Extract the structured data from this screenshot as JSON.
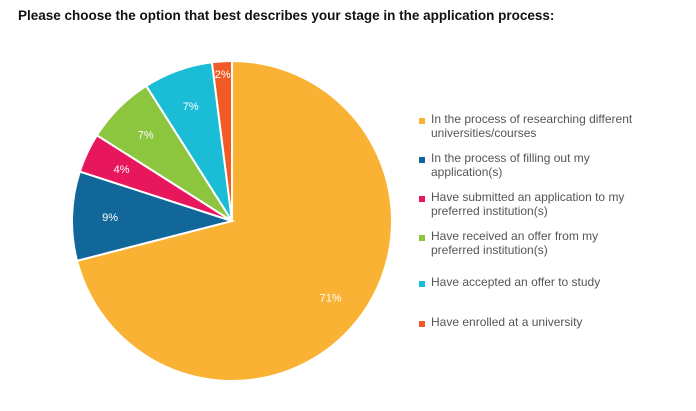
{
  "title": "Please choose the option that best describes your stage in the application process:",
  "chart_data": {
    "type": "pie",
    "title": "Please choose the option that best describes your stage in the application process:",
    "slices": [
      {
        "label": "In the process of researching different universities/courses",
        "value": 71,
        "display": "71%",
        "color": "#F9B233"
      },
      {
        "label": "In the process of filling out my application(s)",
        "value": 9,
        "display": "9%",
        "color": "#11669A"
      },
      {
        "label": "Have submitted an application to my preferred institution(s)",
        "value": 4,
        "display": "4%",
        "color": "#E8175D"
      },
      {
        "label": "Have received an offer from my preferred institution(s)",
        "value": 7,
        "display": "7%",
        "color": "#8CC63F"
      },
      {
        "label": "Have accepted an offer to study",
        "value": 7,
        "display": "7%",
        "color": "#1BBCD6"
      },
      {
        "label": "Have enrolled at a university",
        "value": 2,
        "display": "2%",
        "color": "#F15A24"
      }
    ],
    "legend": {
      "placement": "right",
      "lines": [
        [
          "In the process of researching different",
          "universities/courses"
        ],
        [
          "In the process of filling out my",
          "application(s)"
        ],
        [
          "Have submitted an application to my",
          "preferred institution(s)"
        ],
        [
          "Have received an offer from my",
          "preferred institution(s)"
        ],
        [
          "Have accepted an offer to study"
        ],
        [
          "Have enrolled at a university"
        ]
      ]
    }
  }
}
